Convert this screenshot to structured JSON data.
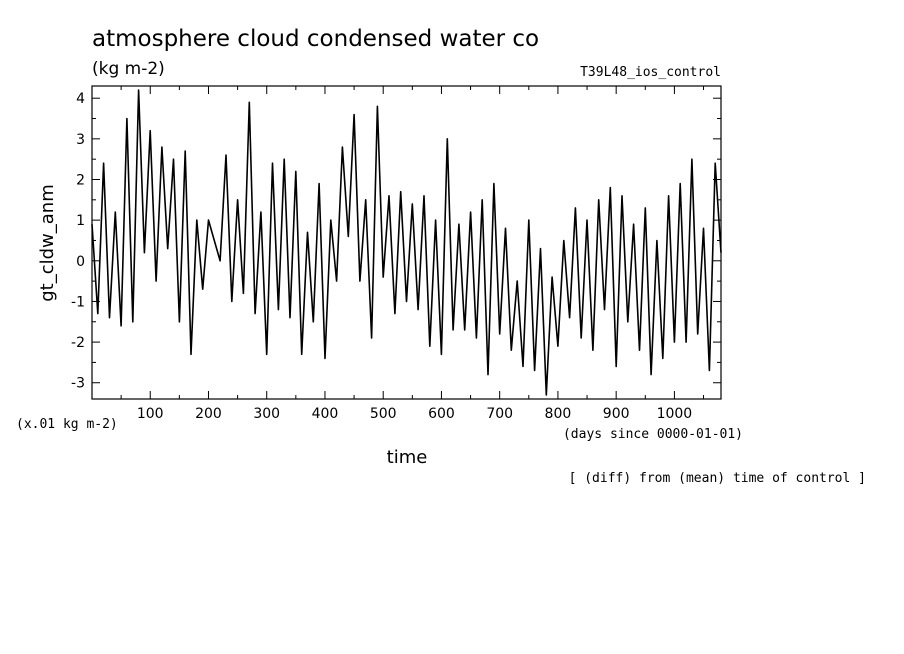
{
  "chart_data": {
    "type": "line",
    "title": "atmosphere cloud condensed water co",
    "units": "(kg m-2)",
    "run_label": "T39L48_ios_control",
    "ylabel": "gt_cldw_anm",
    "y_scale_note": "(x.01 kg m-2)",
    "xlabel": "time",
    "x_units": "(days since 0000-01-01)",
    "footnote": "[ (diff) from (mean) time of control ]",
    "xlim": [
      0,
      1080
    ],
    "ylim": [
      -3.4,
      4.3
    ],
    "x_ticks": [
      100,
      200,
      300,
      400,
      500,
      600,
      700,
      800,
      900,
      1000
    ],
    "y_ticks": [
      -3,
      -2,
      -1,
      0,
      1,
      2,
      3,
      4
    ],
    "grid": false,
    "series": [
      {
        "x": [
          0,
          10,
          20,
          30,
          40,
          50,
          60,
          70,
          80,
          90,
          100,
          110,
          120,
          130,
          140,
          150,
          160,
          170,
          180,
          190,
          200,
          210,
          220,
          230,
          240,
          250,
          260,
          270,
          280,
          290,
          300,
          310,
          320,
          330,
          340,
          350,
          360,
          370,
          380,
          390,
          400,
          410,
          420,
          430,
          440,
          450,
          460,
          470,
          480,
          490,
          500,
          510,
          520,
          530,
          540,
          550,
          560,
          570,
          580,
          590,
          600,
          610,
          620,
          630,
          640,
          650,
          660,
          670,
          680,
          690,
          700,
          710,
          720,
          730,
          740,
          750,
          760,
          770,
          780,
          790,
          800,
          810,
          820,
          830,
          840,
          850,
          860,
          870,
          880,
          890,
          900,
          910,
          920,
          930,
          940,
          950,
          960,
          970,
          980,
          990,
          1000,
          1010,
          1020,
          1030,
          1040,
          1050,
          1060,
          1070,
          1080
        ],
        "values": [
          0.9,
          -1.3,
          2.4,
          -1.4,
          1.2,
          -1.6,
          3.5,
          -1.5,
          4.2,
          0.2,
          3.2,
          -0.5,
          2.8,
          0.3,
          2.5,
          -1.5,
          2.7,
          -2.3,
          1.0,
          -0.7,
          1.0,
          0.5,
          0.0,
          2.6,
          -1.0,
          1.5,
          -0.8,
          3.9,
          -1.3,
          1.2,
          -2.3,
          2.4,
          -1.2,
          2.5,
          -1.4,
          2.2,
          -2.3,
          0.7,
          -1.5,
          1.9,
          -2.4,
          1.0,
          -0.5,
          2.8,
          0.6,
          3.6,
          -0.5,
          1.5,
          -1.9,
          3.8,
          -0.4,
          1.6,
          -1.3,
          1.7,
          -1.0,
          1.4,
          -1.2,
          1.6,
          -2.1,
          1.0,
          -2.3,
          3.0,
          -1.7,
          0.9,
          -1.7,
          1.2,
          -1.9,
          1.5,
          -2.8,
          1.9,
          -1.8,
          0.8,
          -2.2,
          -0.5,
          -2.6,
          1.0,
          -2.7,
          0.3,
          -3.3,
          -0.4,
          -2.1,
          0.5,
          -1.4,
          1.3,
          -1.9,
          1.0,
          -2.2,
          1.5,
          -1.2,
          1.8,
          -2.6,
          1.6,
          -1.5,
          0.9,
          -2.2,
          1.3,
          -2.8,
          0.5,
          -2.4,
          1.6,
          -2.0,
          1.9,
          -2.0,
          2.5,
          -1.8,
          0.8,
          -2.7,
          2.4,
          0.2
        ]
      }
    ]
  }
}
